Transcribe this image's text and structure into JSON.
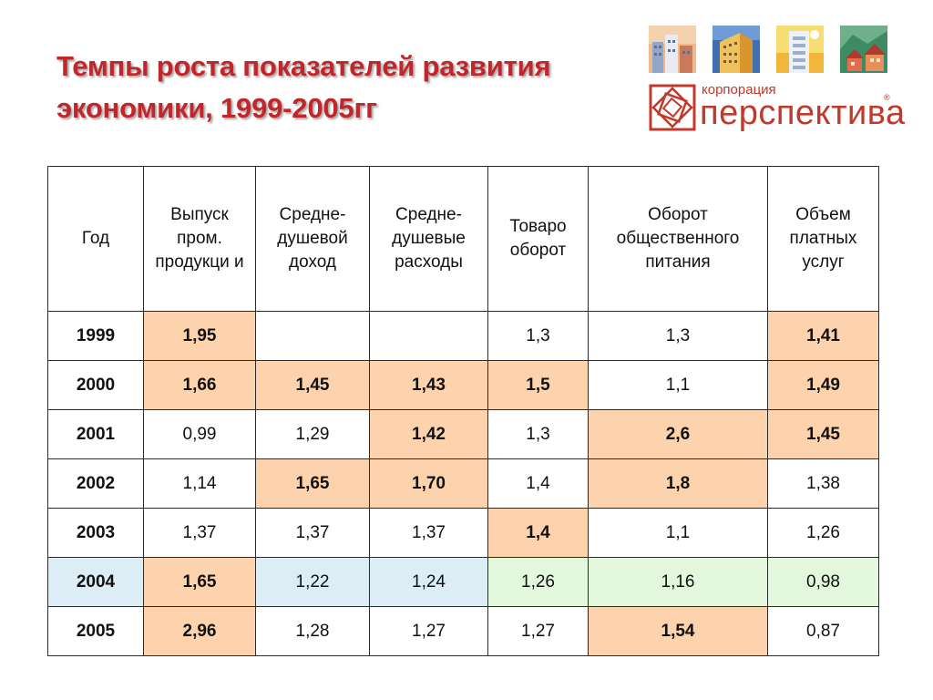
{
  "title": {
    "line1": "Темпы роста показателей развития",
    "line2": "экономики, 1999-2005гг"
  },
  "logo": {
    "small_text": "корпорация",
    "big_text": "перспектива",
    "registered": "®",
    "icon_names": [
      "city-icon",
      "office-building-icon",
      "skyscraper-icon",
      "houses-icon"
    ]
  },
  "colors": {
    "title": "#c0262a",
    "highlight": "#fcd3ac",
    "row_blue": "#dcedf6",
    "row_green": "#e3f7dd",
    "logo": "#c0392b"
  },
  "table": {
    "headers": [
      "Год",
      "Выпуск пром. продукци и",
      "Средне- душевой доход",
      "Средне- душевые расходы",
      "Товаро оборот",
      "Оборот общественного питания",
      "Объем платных услуг"
    ],
    "rows": [
      {
        "year": "1999",
        "cells": [
          "1,95",
          "",
          "",
          "1,3",
          "1,3",
          "1,41"
        ]
      },
      {
        "year": "2000",
        "cells": [
          "1,66",
          "1,45",
          "1,43",
          "1,5",
          "1,1",
          "1,49"
        ]
      },
      {
        "year": "2001",
        "cells": [
          "0,99",
          "1,29",
          "1,42",
          "1,3",
          "2,6",
          "1,45"
        ]
      },
      {
        "year": "2002",
        "cells": [
          "1,14",
          "1,65",
          "1,70",
          "1,4",
          "1,8",
          "1,38"
        ]
      },
      {
        "year": "2003",
        "cells": [
          "1,37",
          "1,37",
          "1,37",
          "1,4",
          "1,1",
          "1,26"
        ]
      },
      {
        "year": "2004",
        "cells": [
          "1,65",
          "1,22",
          "1,24",
          "1,26",
          "1,16",
          "0,98"
        ]
      },
      {
        "year": "2005",
        "cells": [
          "2,96",
          "1,28",
          "1,27",
          "1,27",
          "1,54",
          "0,87"
        ]
      }
    ]
  }
}
